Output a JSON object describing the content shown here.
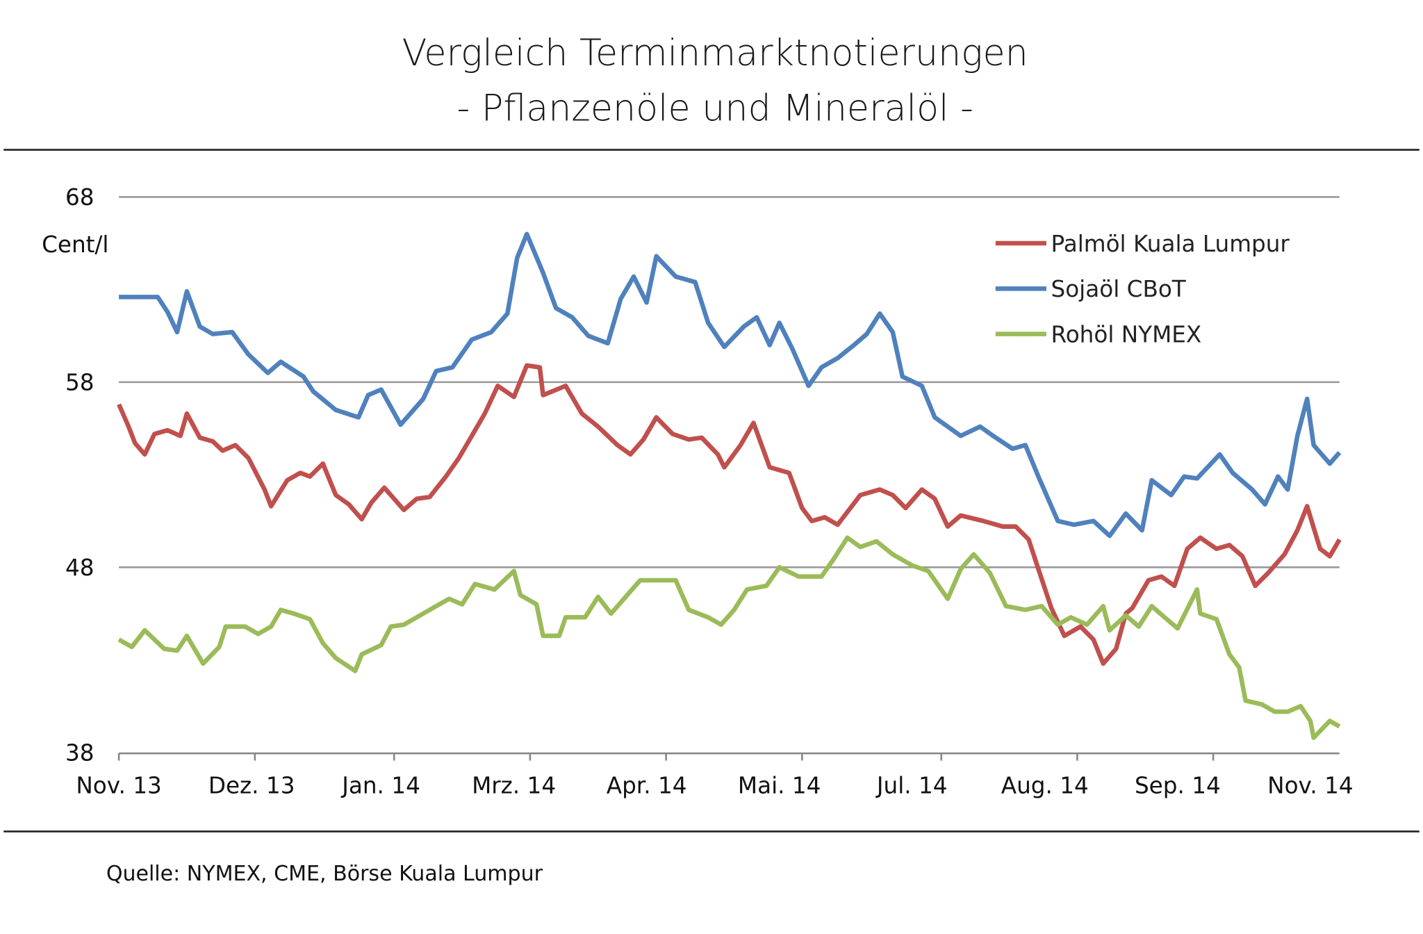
{
  "chart_data": {
    "type": "line",
    "title": "Vergleich Terminmarktnotierungen",
    "subtitle": "- Pflanzenöle  und Mineralöl -",
    "ylabel": "Cent/l",
    "xlabel": "",
    "ylim": [
      38,
      68
    ],
    "xlim_days": [
      0,
      377
    ],
    "y_ticks": [
      68,
      58,
      48,
      38
    ],
    "x_tick_days": [
      0,
      42,
      85,
      127,
      169,
      211,
      254,
      296,
      338
    ],
    "x_labels": [
      {
        "label": "Nov. 13",
        "day": 0
      },
      {
        "label": "Dez. 13",
        "day": 41
      },
      {
        "label": "Jan. 14",
        "day": 81
      },
      {
        "label": "Mrz. 14",
        "day": 122
      },
      {
        "label": "Apr. 14",
        "day": 163
      },
      {
        "label": "Mai. 14",
        "day": 204
      },
      {
        "label": "Jul. 14",
        "day": 245
      },
      {
        "label": "Aug. 14",
        "day": 286
      },
      {
        "label": "Sep. 14",
        "day": 327
      },
      {
        "label": "Nov. 14",
        "day": 368
      }
    ],
    "grid": true,
    "legend_position": "top-right",
    "series": [
      {
        "name": "Palmöl Kuala Lumpur",
        "color": "#c0504d",
        "x": [
          0,
          3,
          5,
          8,
          11,
          15,
          19,
          21,
          25,
          29,
          32,
          36,
          40,
          45,
          47,
          52,
          56,
          59,
          63,
          67,
          71,
          75,
          78,
          82,
          88,
          92,
          96,
          101,
          105,
          109,
          113,
          117,
          122,
          126,
          130,
          131,
          138,
          143,
          148,
          154,
          158,
          162,
          166,
          171,
          176,
          180,
          185,
          187,
          192,
          196,
          201,
          207,
          211,
          214,
          218,
          222,
          229,
          235,
          239,
          243,
          248,
          252,
          256,
          260,
          267,
          273,
          277,
          281,
          284,
          288,
          292,
          297,
          301,
          304,
          308,
          311,
          313,
          318,
          322,
          326,
          330,
          334,
          339,
          343,
          347,
          351,
          355,
          360,
          364,
          367,
          371,
          374,
          377
        ],
        "y": [
          56.8,
          55.6,
          54.7,
          54.1,
          55.2,
          55.4,
          55.1,
          56.3,
          55,
          54.8,
          54.3,
          54.6,
          53.9,
          52.2,
          51.3,
          52.7,
          53.1,
          52.9,
          53.6,
          51.9,
          51.4,
          50.6,
          51.5,
          52.3,
          51.1,
          51.7,
          51.8,
          52.9,
          53.9,
          55.1,
          56.3,
          57.8,
          57.2,
          58.9,
          58.8,
          57.3,
          57.8,
          56.3,
          55.6,
          54.6,
          54.1,
          54.9,
          56.1,
          55.2,
          54.9,
          55,
          54.1,
          53.4,
          54.6,
          55.8,
          53.4,
          53.1,
          51.2,
          50.5,
          50.7,
          50.3,
          51.9,
          52.2,
          51.9,
          51.2,
          52.2,
          51.7,
          50.2,
          50.8,
          50.5,
          50.2,
          50.2,
          49.5,
          47.9,
          45.8,
          44.3,
          44.8,
          44.1,
          42.8,
          43.6,
          45.5,
          45.8,
          47.3,
          47.5,
          47,
          49,
          49.6,
          49,
          49.2,
          48.6,
          47,
          47.7,
          48.7,
          50,
          51.3,
          49,
          48.6,
          49.5
        ]
      },
      {
        "name": "Sojaöl CBoT",
        "color": "#4f81bd",
        "x": [
          0,
          12,
          15,
          18,
          21,
          25,
          29,
          35,
          40,
          46,
          50,
          57,
          60,
          67,
          74,
          77,
          81,
          87,
          94,
          98,
          103,
          109,
          115,
          120,
          123,
          126,
          131,
          135,
          140,
          145,
          151,
          155,
          159,
          163,
          166,
          172,
          178,
          182,
          187,
          193,
          197,
          201,
          204,
          208,
          213,
          217,
          222,
          227,
          231,
          235,
          239,
          242,
          248,
          252,
          256,
          260,
          266,
          270,
          276,
          280,
          284,
          290,
          295,
          301,
          306,
          311,
          316,
          319,
          325,
          329,
          333,
          340,
          344,
          350,
          354,
          358,
          361,
          364,
          367,
          369,
          374,
          377
        ],
        "y": [
          62.6,
          62.6,
          61.8,
          60.7,
          62.9,
          61,
          60.6,
          60.7,
          59.5,
          58.5,
          59.1,
          58.3,
          57.5,
          56.5,
          56.1,
          57.3,
          57.6,
          55.7,
          57.1,
          58.6,
          58.8,
          60.3,
          60.7,
          61.7,
          64.7,
          66,
          63.9,
          62,
          61.5,
          60.5,
          60.1,
          62.5,
          63.7,
          62.3,
          64.8,
          63.7,
          63.4,
          61.2,
          59.9,
          61,
          61.5,
          60,
          61.2,
          59.8,
          57.8,
          58.8,
          59.3,
          60,
          60.6,
          61.7,
          60.7,
          58.3,
          57.8,
          56.1,
          55.6,
          55.1,
          55.6,
          55.1,
          54.4,
          54.6,
          52.9,
          50.5,
          50.3,
          50.5,
          49.7,
          50.9,
          50,
          52.7,
          51.9,
          52.9,
          52.8,
          54.1,
          53.1,
          52.2,
          51.4,
          52.9,
          52.2,
          55.1,
          57.1,
          54.6,
          53.6,
          54.2
        ]
      },
      {
        "name": "Rohöl NYMEX",
        "color": "#9bbb59",
        "x": [
          0,
          4,
          8,
          14,
          18,
          21,
          26,
          31,
          33,
          39,
          43,
          47,
          50,
          54,
          59,
          63,
          67,
          73,
          75,
          81,
          84,
          88,
          92,
          98,
          102,
          106,
          110,
          116,
          122,
          124,
          129,
          131,
          136,
          138,
          144,
          148,
          152,
          157,
          161,
          166,
          172,
          176,
          182,
          186,
          190,
          194,
          200,
          204,
          210,
          217,
          221,
          225,
          229,
          234,
          239,
          245,
          250,
          256,
          260,
          264,
          269,
          274,
          280,
          285,
          290,
          294,
          299,
          304,
          306,
          311,
          315,
          319,
          323,
          327,
          333,
          334,
          339,
          343,
          346,
          348,
          353,
          357,
          361,
          365,
          368,
          369,
          374,
          377
        ],
        "y": [
          44.1,
          43.7,
          44.6,
          43.6,
          43.5,
          44.3,
          42.8,
          43.7,
          44.8,
          44.8,
          44.4,
          44.8,
          45.7,
          45.5,
          45.2,
          43.9,
          43.1,
          42.4,
          43.3,
          43.8,
          44.8,
          44.9,
          45.3,
          45.9,
          46.3,
          46,
          47.1,
          46.8,
          47.8,
          46.5,
          46,
          44.3,
          44.3,
          45.3,
          45.3,
          46.4,
          45.5,
          46.5,
          47.3,
          47.3,
          47.3,
          45.7,
          45.3,
          44.9,
          45.7,
          46.8,
          47,
          48,
          47.5,
          47.5,
          48.5,
          49.6,
          49.1,
          49.4,
          48.7,
          48.1,
          47.8,
          46.3,
          47.9,
          48.7,
          47.7,
          45.9,
          45.7,
          45.9,
          44.9,
          45.3,
          44.9,
          45.9,
          44.6,
          45.4,
          44.8,
          45.9,
          45.3,
          44.7,
          46.8,
          45.5,
          45.2,
          43.3,
          42.6,
          40.8,
          40.6,
          40.2,
          40.2,
          40.5,
          39.7,
          38.8,
          39.7,
          39.4
        ]
      }
    ],
    "source": "Quelle: NYMEX, CME, Börse Kuala  Lumpur"
  }
}
